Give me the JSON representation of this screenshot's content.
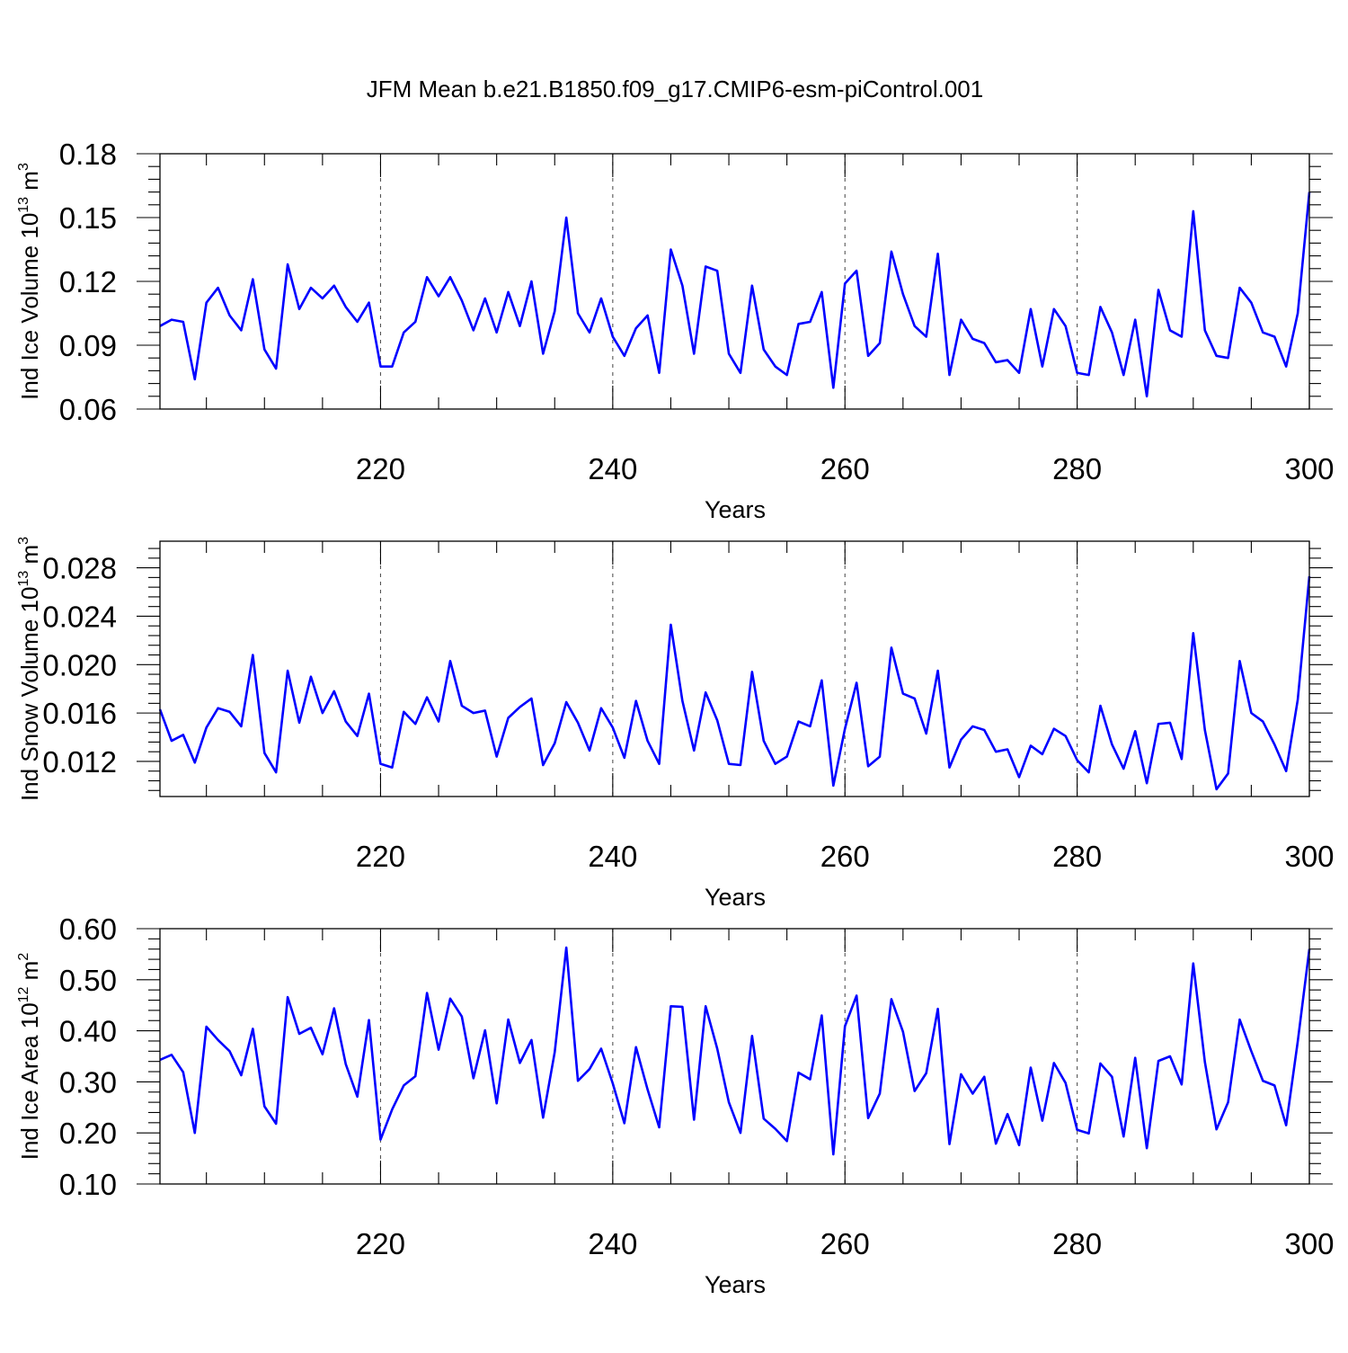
{
  "figure_title": "JFM Mean b.e21.B1850.f09_g17.CMIP6-esm-piControl.001",
  "colors": {
    "line": "#0000ff",
    "frame": "#000000",
    "grid": "#555555"
  },
  "chart_data": [
    {
      "type": "line",
      "ylabel": {
        "text": "Ind Ice Volume 10",
        "exp": "13",
        "unit": " m",
        "unit_exp": "3"
      },
      "xlabel": "Years",
      "xlim": [
        201,
        300
      ],
      "xticks": [
        220,
        240,
        260,
        280,
        300
      ],
      "ylim": [
        0.06,
        0.18
      ],
      "yticks": [
        0.06,
        0.09,
        0.12,
        0.15,
        0.18
      ],
      "ytick_labels": [
        "0.06",
        "0.09",
        "0.12",
        "0.15",
        "0.18"
      ],
      "x_start": 201,
      "values": [
        0.099,
        0.102,
        0.101,
        0.074,
        0.11,
        0.117,
        0.104,
        0.097,
        0.121,
        0.088,
        0.079,
        0.128,
        0.107,
        0.117,
        0.112,
        0.118,
        0.108,
        0.101,
        0.11,
        0.08,
        0.08,
        0.096,
        0.101,
        0.122,
        0.113,
        0.122,
        0.111,
        0.097,
        0.112,
        0.096,
        0.115,
        0.099,
        0.12,
        0.086,
        0.106,
        0.15,
        0.105,
        0.096,
        0.112,
        0.094,
        0.085,
        0.098,
        0.104,
        0.077,
        0.135,
        0.118,
        0.086,
        0.127,
        0.125,
        0.086,
        0.077,
        0.118,
        0.088,
        0.08,
        0.076,
        0.1,
        0.101,
        0.115,
        0.07,
        0.119,
        0.125,
        0.085,
        0.091,
        0.134,
        0.114,
        0.099,
        0.094,
        0.133,
        0.076,
        0.102,
        0.093,
        0.091,
        0.082,
        0.083,
        0.077,
        0.107,
        0.08,
        0.107,
        0.099,
        0.077,
        0.076,
        0.108,
        0.096,
        0.076,
        0.102,
        0.066,
        0.116,
        0.097,
        0.094,
        0.153,
        0.097,
        0.085,
        0.084,
        0.117,
        0.11,
        0.096,
        0.094,
        0.08,
        0.105,
        0.162
      ]
    },
    {
      "type": "line",
      "ylabel": {
        "text": "Ind Snow Volume 10",
        "exp": "13",
        "unit": " m",
        "unit_exp": "3"
      },
      "xlabel": "Years",
      "xlim": [
        201,
        300
      ],
      "xticks": [
        220,
        240,
        260,
        280,
        300
      ],
      "ylim": [
        0.0091,
        0.0302
      ],
      "yticks": [
        0.012,
        0.016,
        0.02,
        0.024,
        0.028
      ],
      "ytick_labels": [
        "0.012",
        "0.016",
        "0.020",
        "0.024",
        "0.028"
      ],
      "x_start": 201,
      "values": [
        0.0163,
        0.0137,
        0.0142,
        0.0119,
        0.0148,
        0.0164,
        0.0161,
        0.0149,
        0.0208,
        0.0127,
        0.0111,
        0.0195,
        0.0152,
        0.019,
        0.016,
        0.0178,
        0.0153,
        0.0141,
        0.0176,
        0.0118,
        0.0115,
        0.0161,
        0.0151,
        0.0173,
        0.0153,
        0.0203,
        0.0166,
        0.016,
        0.0162,
        0.0124,
        0.0156,
        0.0165,
        0.0172,
        0.0117,
        0.0135,
        0.0169,
        0.0152,
        0.0129,
        0.0164,
        0.0148,
        0.0123,
        0.017,
        0.0137,
        0.0118,
        0.0233,
        0.017,
        0.0129,
        0.0177,
        0.0154,
        0.0118,
        0.0117,
        0.0194,
        0.0137,
        0.0118,
        0.0124,
        0.0153,
        0.0149,
        0.0187,
        0.01,
        0.0147,
        0.0185,
        0.0116,
        0.0124,
        0.0214,
        0.0176,
        0.0172,
        0.0143,
        0.0195,
        0.0115,
        0.0138,
        0.0149,
        0.0146,
        0.0128,
        0.013,
        0.0107,
        0.0133,
        0.0126,
        0.0147,
        0.0141,
        0.0121,
        0.0111,
        0.0166,
        0.0134,
        0.0114,
        0.0145,
        0.0102,
        0.0151,
        0.0152,
        0.0122,
        0.0226,
        0.0146,
        0.0097,
        0.011,
        0.0203,
        0.016,
        0.0153,
        0.0134,
        0.0112,
        0.0171,
        0.0273
      ]
    },
    {
      "type": "line",
      "ylabel": {
        "text": "Ind Ice Area 10",
        "exp": "12",
        "unit": " m",
        "unit_exp": "2"
      },
      "xlabel": "Years",
      "xlim": [
        201,
        300
      ],
      "xticks": [
        220,
        240,
        260,
        280,
        300
      ],
      "ylim": [
        0.1,
        0.6
      ],
      "yticks": [
        0.1,
        0.2,
        0.3,
        0.4,
        0.5,
        0.6
      ],
      "ytick_labels": [
        "0.10",
        "0.20",
        "0.30",
        "0.40",
        "0.50",
        "0.60"
      ],
      "x_start": 201,
      "values": [
        0.343,
        0.353,
        0.319,
        0.2,
        0.408,
        0.382,
        0.36,
        0.313,
        0.404,
        0.252,
        0.218,
        0.466,
        0.394,
        0.406,
        0.354,
        0.444,
        0.335,
        0.271,
        0.421,
        0.187,
        0.246,
        0.293,
        0.311,
        0.474,
        0.363,
        0.463,
        0.428,
        0.307,
        0.401,
        0.258,
        0.422,
        0.337,
        0.382,
        0.23,
        0.358,
        0.563,
        0.302,
        0.325,
        0.365,
        0.297,
        0.219,
        0.368,
        0.285,
        0.211,
        0.448,
        0.447,
        0.226,
        0.448,
        0.365,
        0.26,
        0.2,
        0.39,
        0.228,
        0.208,
        0.184,
        0.318,
        0.305,
        0.43,
        0.158,
        0.409,
        0.469,
        0.229,
        0.277,
        0.462,
        0.398,
        0.282,
        0.317,
        0.443,
        0.178,
        0.315,
        0.277,
        0.31,
        0.179,
        0.237,
        0.176,
        0.328,
        0.224,
        0.337,
        0.298,
        0.206,
        0.199,
        0.336,
        0.31,
        0.193,
        0.347,
        0.17,
        0.341,
        0.35,
        0.295,
        0.532,
        0.339,
        0.207,
        0.26,
        0.422,
        0.36,
        0.302,
        0.293,
        0.215,
        0.379,
        0.56
      ]
    }
  ]
}
